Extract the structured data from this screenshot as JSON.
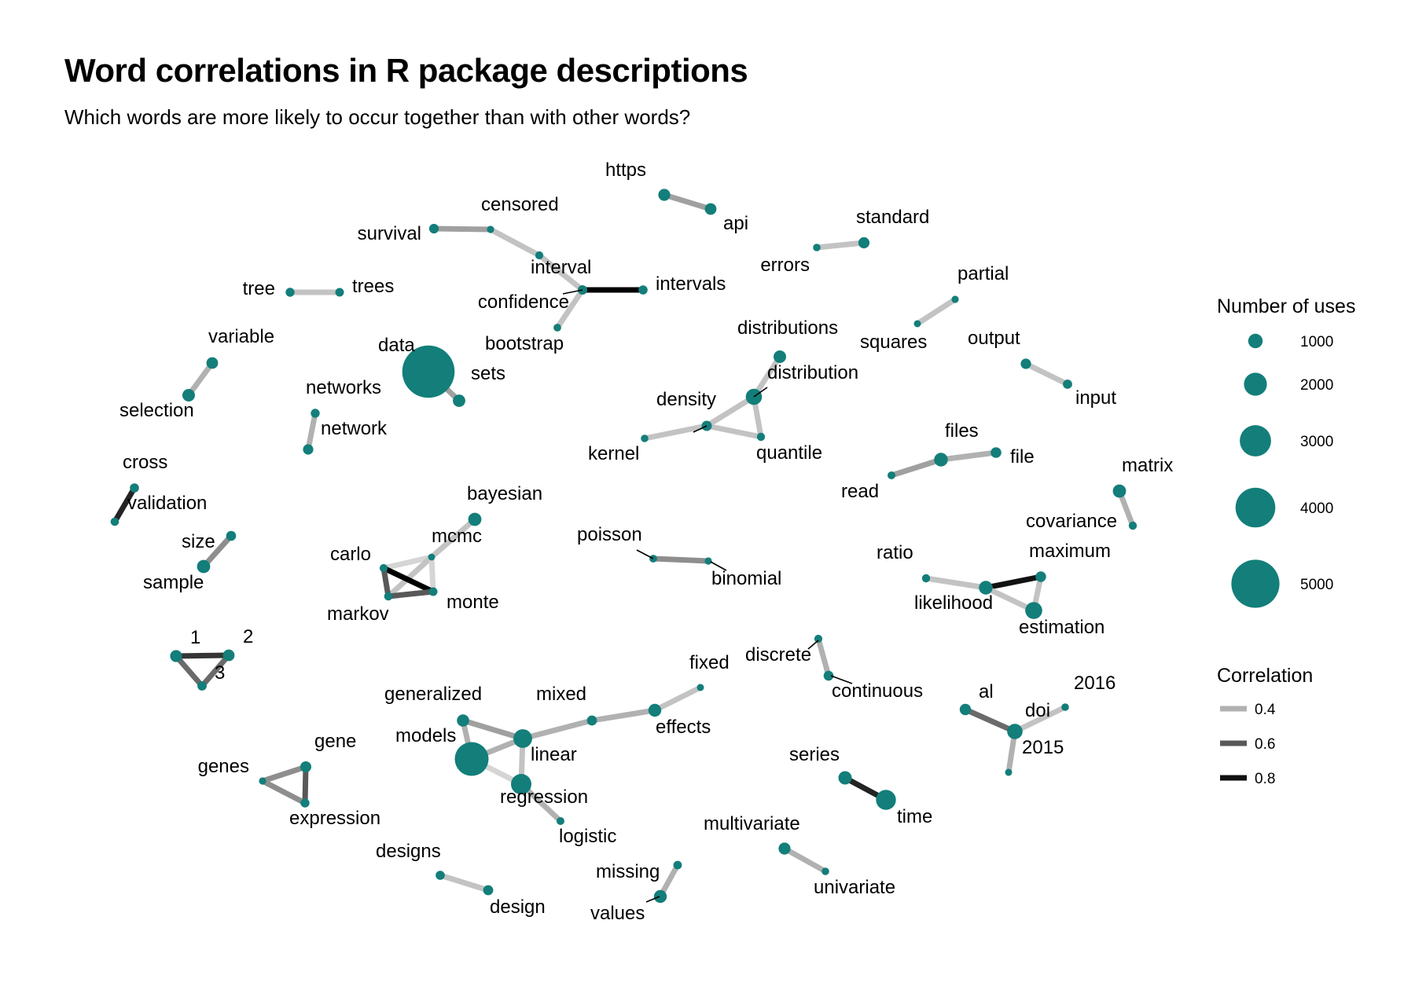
{
  "title": "Word correlations in R package descriptions",
  "subtitle": "Which words are more likely to occur together than with other words?",
  "colors": {
    "node": "#137e7a",
    "background": "#ffffff"
  },
  "legend": {
    "size_title": "Number of uses",
    "size_values": [
      1000,
      2000,
      3000,
      4000,
      5000
    ],
    "corr_title": "Correlation",
    "corr_values": [
      0.4,
      0.6,
      0.8
    ]
  },
  "nodes": [
    {
      "word": "https",
      "uses": 700
    },
    {
      "word": "api",
      "uses": 650
    },
    {
      "word": "censored",
      "uses": 130
    },
    {
      "word": "survival",
      "uses": 420
    },
    {
      "word": "interval",
      "uses": 220
    },
    {
      "word": "confidence",
      "uses": 400
    },
    {
      "word": "intervals",
      "uses": 360
    },
    {
      "word": "bootstrap",
      "uses": 180
    },
    {
      "word": "tree",
      "uses": 330
    },
    {
      "word": "trees",
      "uses": 300
    },
    {
      "word": "standard",
      "uses": 600
    },
    {
      "word": "errors",
      "uses": 160
    },
    {
      "word": "partial",
      "uses": 140
    },
    {
      "word": "squares",
      "uses": 110
    },
    {
      "word": "output",
      "uses": 500
    },
    {
      "word": "input",
      "uses": 380
    },
    {
      "word": "variable",
      "uses": 650
    },
    {
      "word": "selection",
      "uses": 760
    },
    {
      "word": "data",
      "uses": 5500
    },
    {
      "word": "sets",
      "uses": 750
    },
    {
      "word": "networks",
      "uses": 330
    },
    {
      "word": "network",
      "uses": 500
    },
    {
      "word": "distributions",
      "uses": 760
    },
    {
      "word": "distribution",
      "uses": 1200
    },
    {
      "word": "density",
      "uses": 480
    },
    {
      "word": "kernel",
      "uses": 170
    },
    {
      "word": "quantile",
      "uses": 240
    },
    {
      "word": "files",
      "uses": 900
    },
    {
      "word": "file",
      "uses": 550
    },
    {
      "word": "read",
      "uses": 200
    },
    {
      "word": "cross",
      "uses": 360
    },
    {
      "word": "validation",
      "uses": 260
    },
    {
      "word": "matrix",
      "uses": 850
    },
    {
      "word": "covariance",
      "uses": 250
    },
    {
      "word": "size",
      "uses": 450
    },
    {
      "word": "sample",
      "uses": 850
    },
    {
      "word": "bayesian",
      "uses": 850
    },
    {
      "word": "mcmc",
      "uses": 100
    },
    {
      "word": "carlo",
      "uses": 230
    },
    {
      "word": "markov",
      "uses": 260
    },
    {
      "word": "monte",
      "uses": 300
    },
    {
      "word": "poisson",
      "uses": 180
    },
    {
      "word": "binomial",
      "uses": 140
    },
    {
      "word": "ratio",
      "uses": 250
    },
    {
      "word": "maximum",
      "uses": 520
    },
    {
      "word": "likelihood",
      "uses": 900
    },
    {
      "word": "estimation",
      "uses": 1300
    },
    {
      "word": "1",
      "uses": 700
    },
    {
      "word": "2",
      "uses": 650
    },
    {
      "word": "3",
      "uses": 380
    },
    {
      "word": "discrete",
      "uses": 230
    },
    {
      "word": "continuous",
      "uses": 450
    },
    {
      "word": "fixed",
      "uses": 110
    },
    {
      "word": "generalized",
      "uses": 730
    },
    {
      "word": "mixed",
      "uses": 470
    },
    {
      "word": "effects",
      "uses": 800
    },
    {
      "word": "models",
      "uses": 3300
    },
    {
      "word": "linear",
      "uses": 1500
    },
    {
      "word": "regression",
      "uses": 1700
    },
    {
      "word": "logistic",
      "uses": 200
    },
    {
      "word": "al",
      "uses": 620
    },
    {
      "word": "doi",
      "uses": 1100
    },
    {
      "word": "2016",
      "uses": 170
    },
    {
      "word": "2015",
      "uses": 110
    },
    {
      "word": "gene",
      "uses": 580
    },
    {
      "word": "genes",
      "uses": 130
    },
    {
      "word": "expression",
      "uses": 330
    },
    {
      "word": "series",
      "uses": 870
    },
    {
      "word": "time",
      "uses": 1650
    },
    {
      "word": "designs",
      "uses": 350
    },
    {
      "word": "design",
      "uses": 470
    },
    {
      "word": "multivariate",
      "uses": 700
    },
    {
      "word": "univariate",
      "uses": 170
    },
    {
      "word": "missing",
      "uses": 280
    },
    {
      "word": "values",
      "uses": 800
    }
  ],
  "edges": [
    {
      "from": "https",
      "to": "api",
      "corr": 0.45
    },
    {
      "from": "survival",
      "to": "censored",
      "corr": 0.45
    },
    {
      "from": "censored",
      "to": "interval",
      "corr": 0.35
    },
    {
      "from": "interval",
      "to": "confidence",
      "corr": 0.35
    },
    {
      "from": "confidence",
      "to": "intervals",
      "corr": 0.9
    },
    {
      "from": "confidence",
      "to": "bootstrap",
      "corr": 0.35
    },
    {
      "from": "tree",
      "to": "trees",
      "corr": 0.35
    },
    {
      "from": "errors",
      "to": "standard",
      "corr": 0.35
    },
    {
      "from": "squares",
      "to": "partial",
      "corr": 0.35
    },
    {
      "from": "output",
      "to": "input",
      "corr": 0.35
    },
    {
      "from": "variable",
      "to": "selection",
      "corr": 0.4
    },
    {
      "from": "data",
      "to": "sets",
      "corr": 0.45
    },
    {
      "from": "networks",
      "to": "network",
      "corr": 0.4
    },
    {
      "from": "distributions",
      "to": "distribution",
      "corr": 0.35
    },
    {
      "from": "distribution",
      "to": "density",
      "corr": 0.35
    },
    {
      "from": "distribution",
      "to": "quantile",
      "corr": 0.35
    },
    {
      "from": "density",
      "to": "quantile",
      "corr": 0.35
    },
    {
      "from": "density",
      "to": "kernel",
      "corr": 0.35
    },
    {
      "from": "read",
      "to": "files",
      "corr": 0.45
    },
    {
      "from": "files",
      "to": "file",
      "corr": 0.4
    },
    {
      "from": "cross",
      "to": "validation",
      "corr": 0.8
    },
    {
      "from": "matrix",
      "to": "covariance",
      "corr": 0.4
    },
    {
      "from": "size",
      "to": "sample",
      "corr": 0.5
    },
    {
      "from": "bayesian",
      "to": "mcmc",
      "corr": 0.35
    },
    {
      "from": "mcmc",
      "to": "carlo",
      "corr": 0.3
    },
    {
      "from": "mcmc",
      "to": "markov",
      "corr": 0.35
    },
    {
      "from": "mcmc",
      "to": "monte",
      "corr": 0.3
    },
    {
      "from": "carlo",
      "to": "monte",
      "corr": 0.95
    },
    {
      "from": "carlo",
      "to": "markov",
      "corr": 0.65
    },
    {
      "from": "markov",
      "to": "monte",
      "corr": 0.65
    },
    {
      "from": "poisson",
      "to": "binomial",
      "corr": 0.5
    },
    {
      "from": "ratio",
      "to": "likelihood",
      "corr": 0.35
    },
    {
      "from": "likelihood",
      "to": "maximum",
      "corr": 0.85
    },
    {
      "from": "likelihood",
      "to": "estimation",
      "corr": 0.35
    },
    {
      "from": "maximum",
      "to": "estimation",
      "corr": 0.35
    },
    {
      "from": "1",
      "to": "2",
      "corr": 0.75
    },
    {
      "from": "1",
      "to": "3",
      "corr": 0.6
    },
    {
      "from": "2",
      "to": "3",
      "corr": 0.6
    },
    {
      "from": "discrete",
      "to": "continuous",
      "corr": 0.4
    },
    {
      "from": "fixed",
      "to": "effects",
      "corr": 0.35
    },
    {
      "from": "effects",
      "to": "mixed",
      "corr": 0.4
    },
    {
      "from": "mixed",
      "to": "linear",
      "corr": 0.4
    },
    {
      "from": "generalized",
      "to": "linear",
      "corr": 0.45
    },
    {
      "from": "generalized",
      "to": "models",
      "corr": 0.4
    },
    {
      "from": "models",
      "to": "linear",
      "corr": 0.4
    },
    {
      "from": "linear",
      "to": "regression",
      "corr": 0.35
    },
    {
      "from": "models",
      "to": "regression",
      "corr": 0.3
    },
    {
      "from": "regression",
      "to": "logistic",
      "corr": 0.4
    },
    {
      "from": "al",
      "to": "doi",
      "corr": 0.6
    },
    {
      "from": "doi",
      "to": "2016",
      "corr": 0.35
    },
    {
      "from": "doi",
      "to": "2015",
      "corr": 0.4
    },
    {
      "from": "gene",
      "to": "genes",
      "corr": 0.5
    },
    {
      "from": "gene",
      "to": "expression",
      "corr": 0.65
    },
    {
      "from": "genes",
      "to": "expression",
      "corr": 0.5
    },
    {
      "from": "series",
      "to": "time",
      "corr": 0.8
    },
    {
      "from": "designs",
      "to": "design",
      "corr": 0.35
    },
    {
      "from": "multivariate",
      "to": "univariate",
      "corr": 0.4
    },
    {
      "from": "missing",
      "to": "values",
      "corr": 0.4
    }
  ]
}
